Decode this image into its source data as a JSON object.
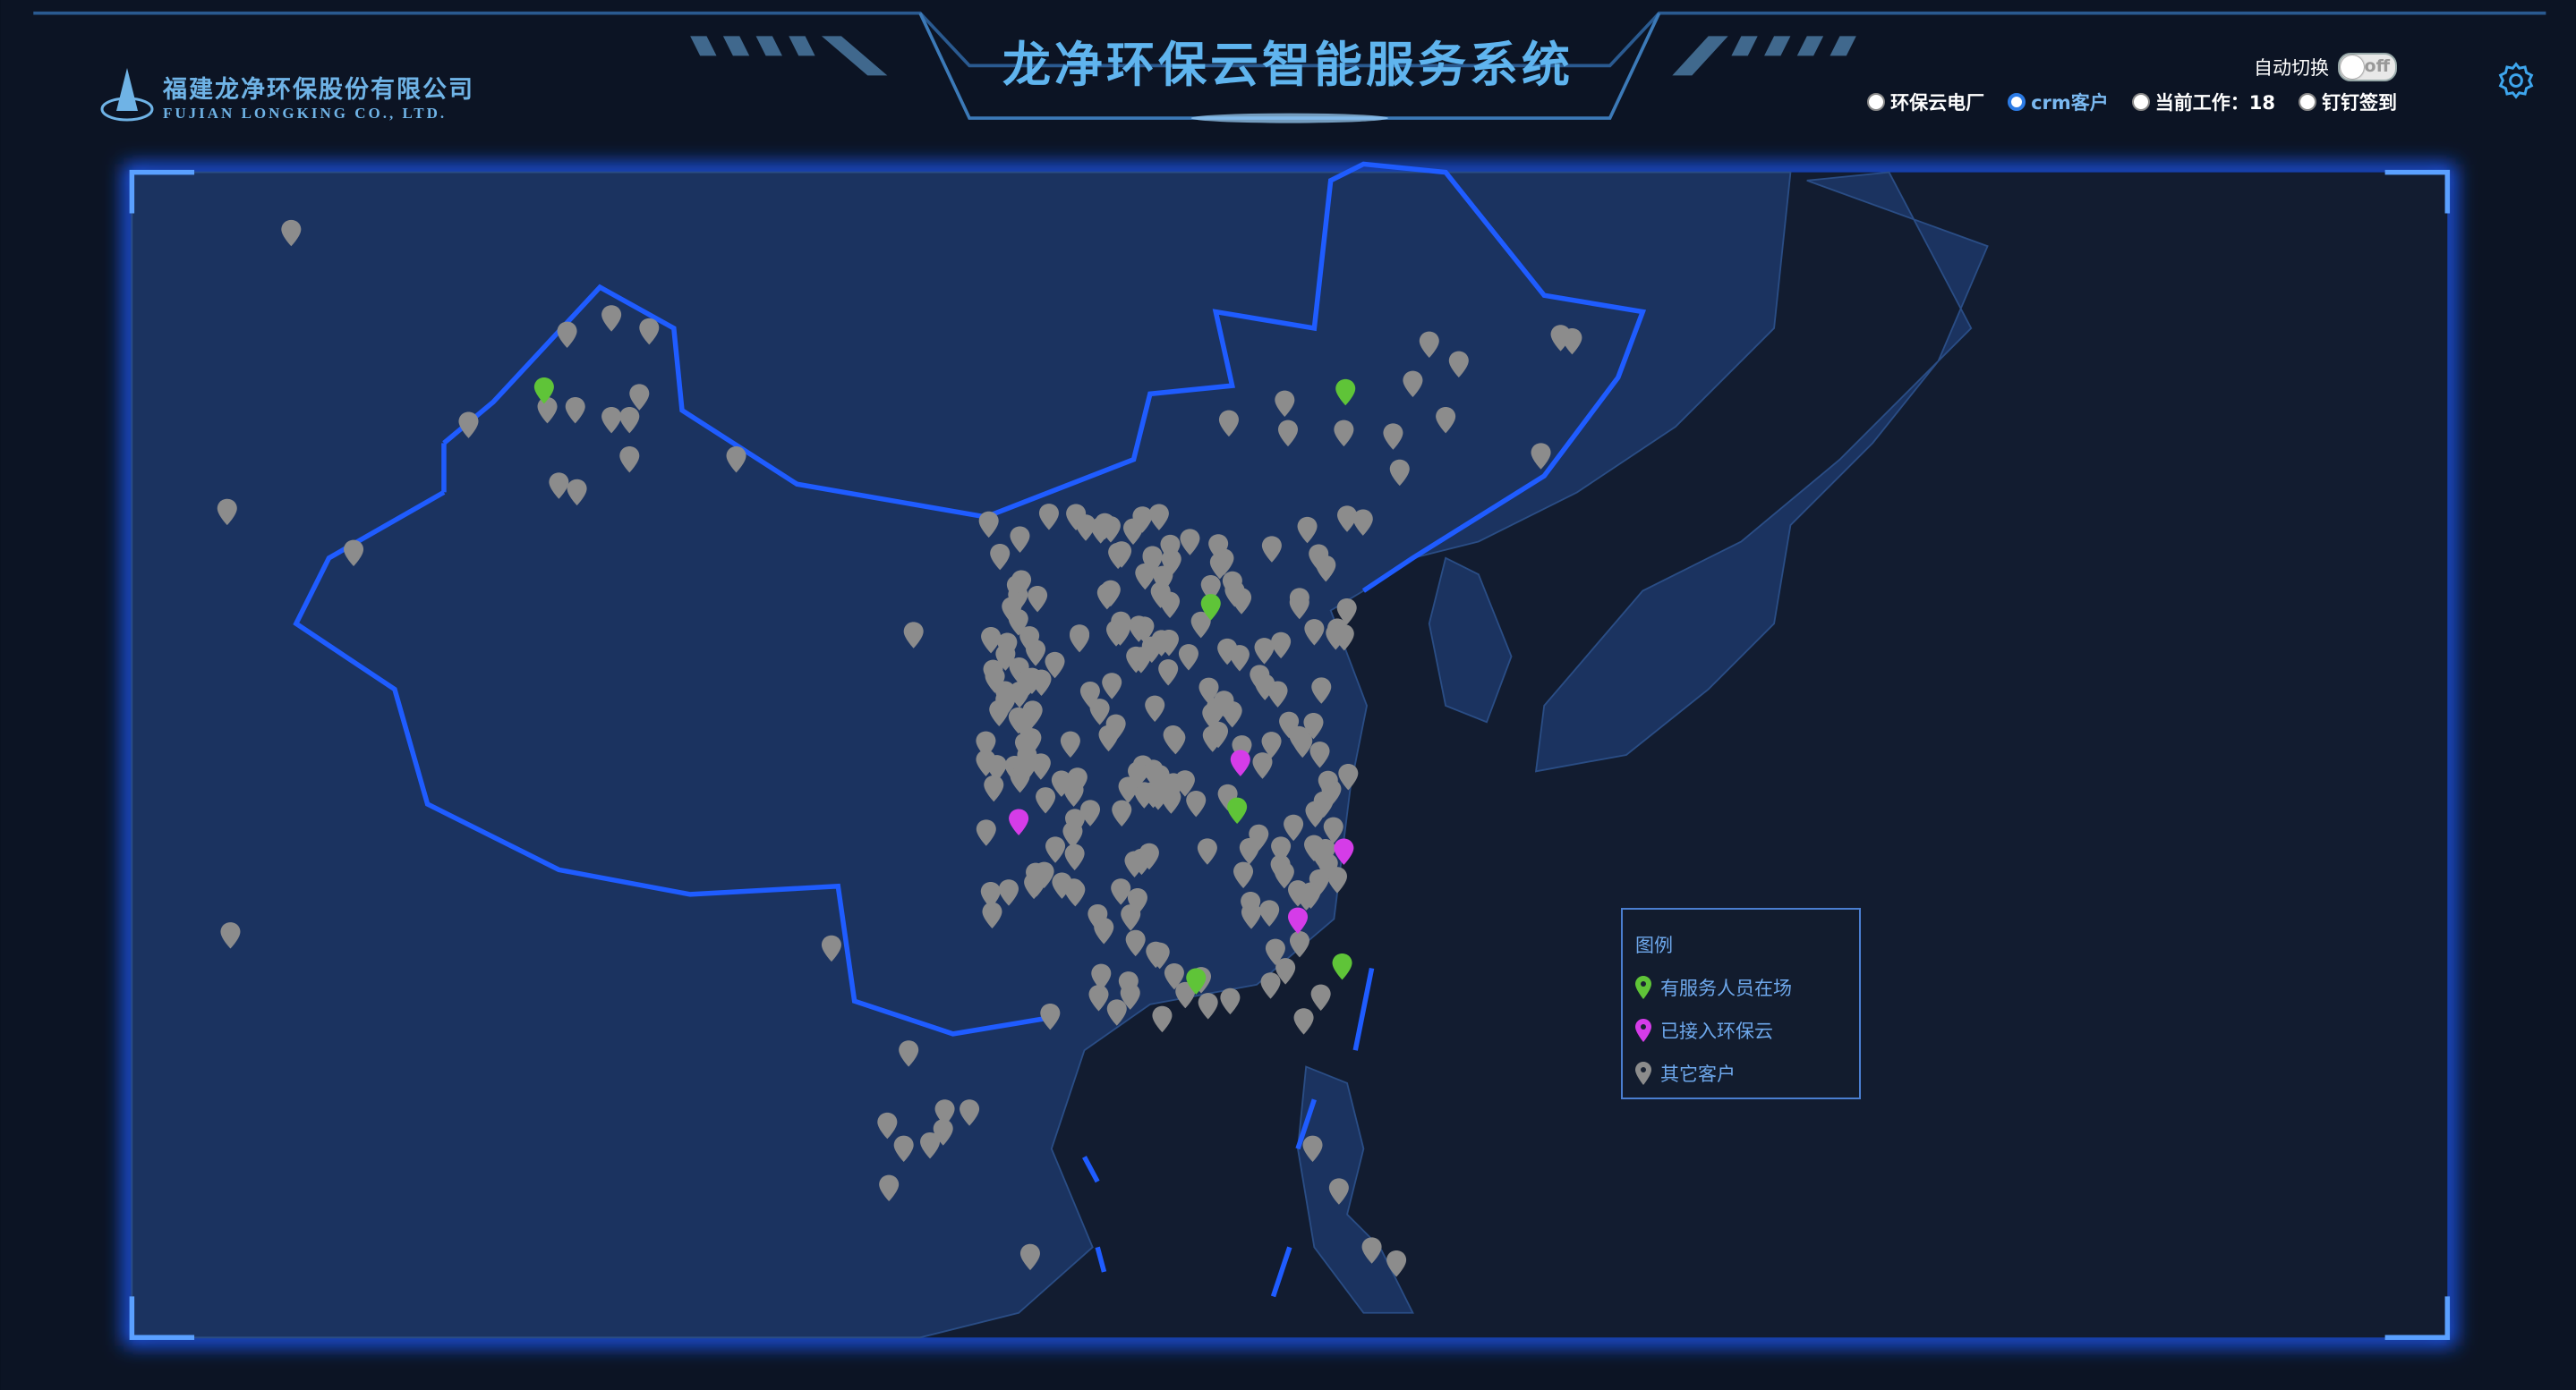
{
  "header": {
    "title": "龙净环保云智能服务系统"
  },
  "logo": {
    "cn": "福建龙净环保股份有限公司",
    "en": "FUJIAN LONGKING CO., LTD."
  },
  "controls": {
    "auto_switch_label": "自动切换",
    "auto_switch_state": "off",
    "radios": [
      {
        "label": "环保云电厂",
        "selected": false
      },
      {
        "label": "crm客户",
        "selected": true
      },
      {
        "label": "当前工作：18",
        "selected": false
      },
      {
        "label": "钉钉签到",
        "selected": false
      }
    ],
    "settings_icon": "gear-icon"
  },
  "legend": {
    "title": "图例",
    "items": [
      {
        "label": "有服务人员在场",
        "color": "#5fc438"
      },
      {
        "label": "已接入环保云",
        "color": "#d53ce8"
      },
      {
        "label": "其它客户",
        "color": "#8c8c8c"
      }
    ]
  },
  "colors": {
    "accent": "#1f5cff",
    "map_land": "#1b3360",
    "map_sea": "#121c30",
    "title": "#5fb4ee"
  }
}
